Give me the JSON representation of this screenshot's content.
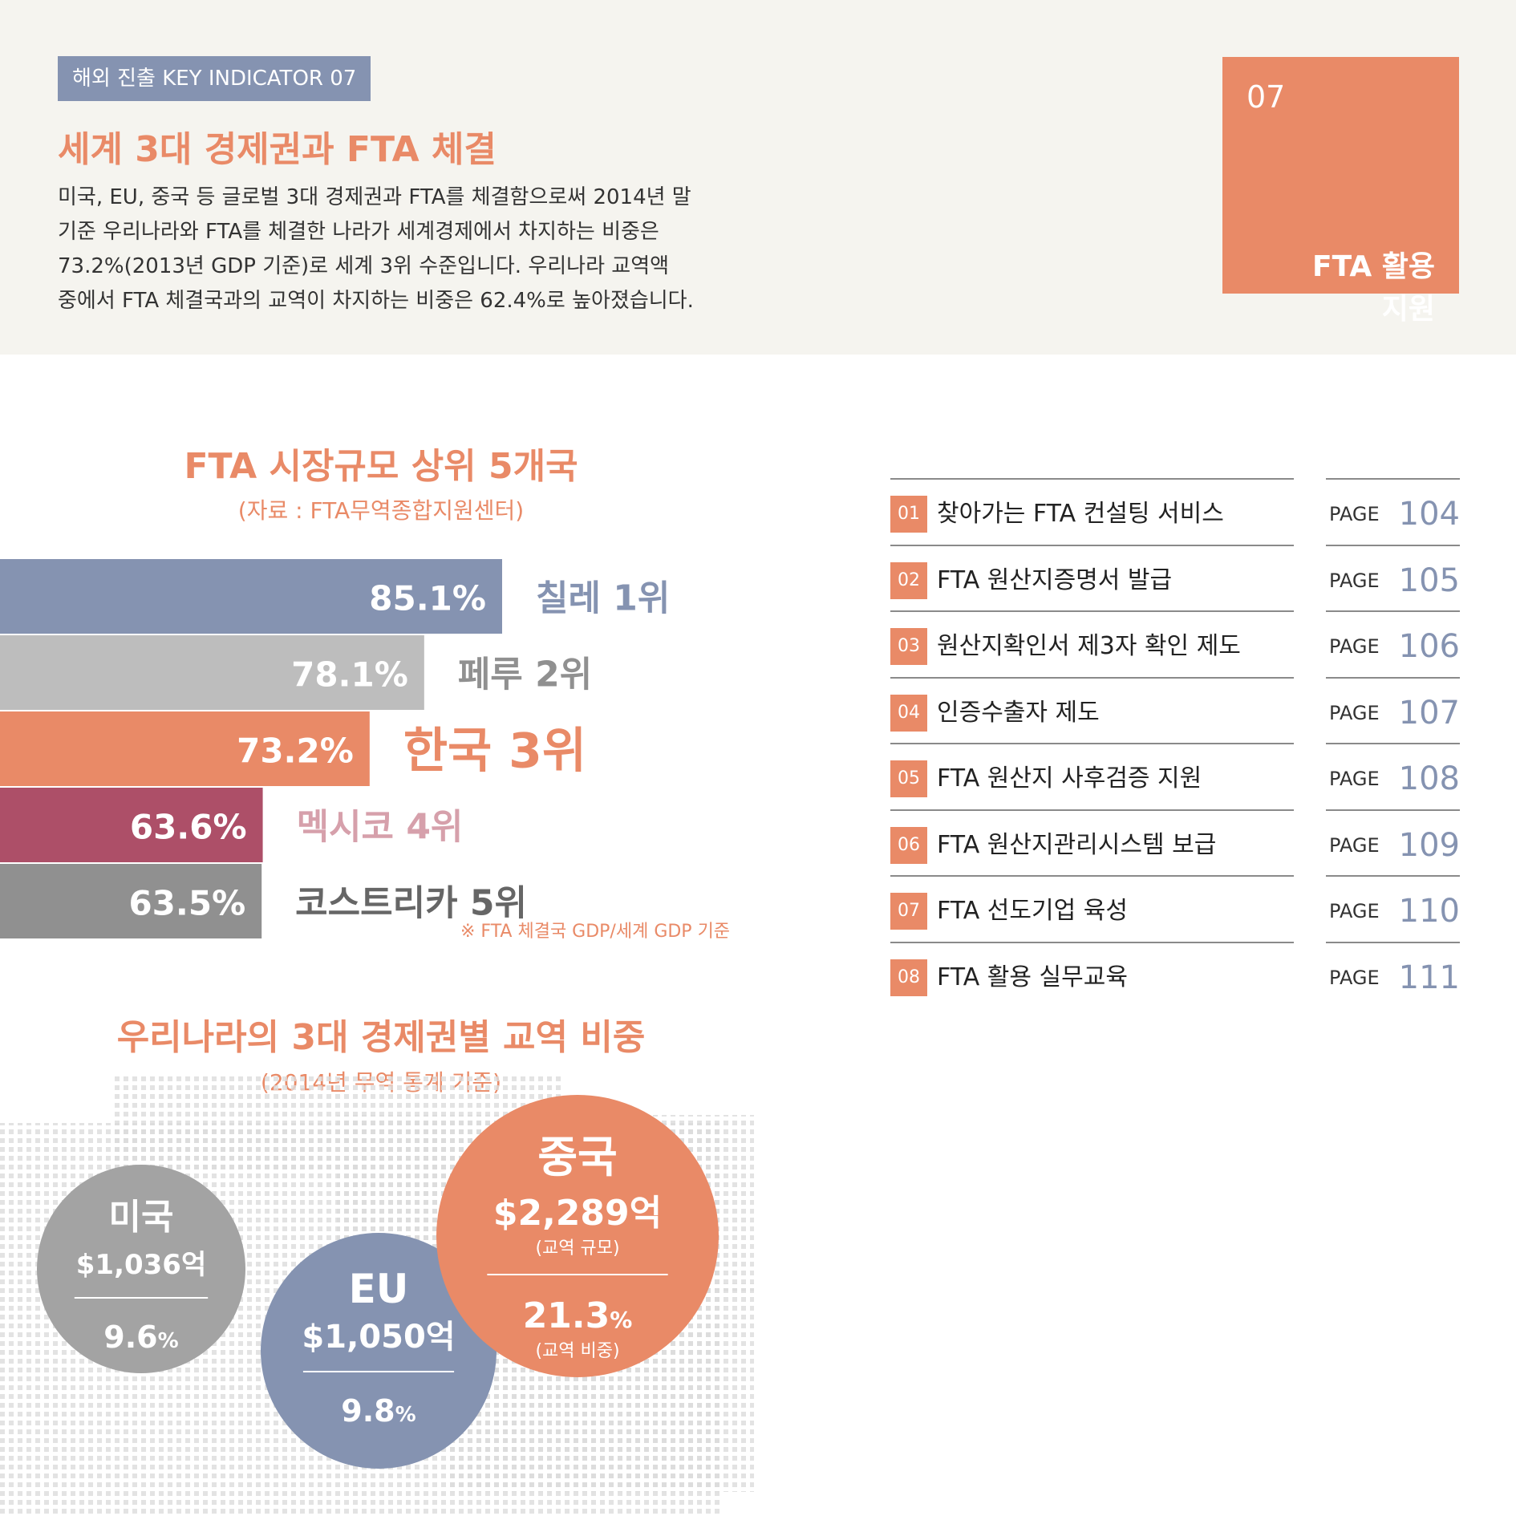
{
  "header": {
    "tag": "해외 진출 KEY INDICATOR 07",
    "title": "세계 3대 경제권과 FTA 체결",
    "description_lines": [
      "미국, EU, 중국 등 글로벌 3대 경제권과 FTA를 체결함으로써 2014년 말",
      "기준 우리나라와 FTA를 체결한 나라가 세계경제에서 차지하는 비중은",
      "73.2%(2013년 GDP 기준)로 세계 3위 수준입니다. 우리나라 교역액",
      "중에서 FTA 체결국과의 교역이 차지하는 비중은 62.4%로 높아졌습니다."
    ],
    "box": {
      "number": "07",
      "label_line1": "FTA 활용",
      "label_line2": "지원"
    }
  },
  "colors": {
    "accent": "#e98a67",
    "slate": "#8593b1",
    "light_gray": "#bdbdbd",
    "maroon": "#ad4f68",
    "gray": "#909090",
    "pink": "#d6a0ab",
    "circle_gray": "#a3a3a3"
  },
  "chart_data": [
    {
      "type": "bar",
      "orientation": "horizontal",
      "title": "FTA 시장규모 상위 5개국",
      "subtitle": "(자료 : FTA무역종합지원센터)",
      "note": "※ FTA 체결국 GDP/세계 GDP 기준",
      "categories": [
        "칠레 1위",
        "페루 2위",
        "한국 3위",
        "멕시코 4위",
        "코스트리카 5위"
      ],
      "values": [
        85.1,
        78.1,
        73.2,
        63.6,
        63.5
      ],
      "value_labels": [
        "85.1%",
        "78.1%",
        "73.2%",
        "63.6%",
        "63.5%"
      ],
      "bar_colors": [
        "#8593b1",
        "#bdbdbd",
        "#e98a67",
        "#ad4f68",
        "#909090"
      ],
      "label_colors": [
        "#8593b1",
        "#909090",
        "#e98a67",
        "#d6a0ab",
        "#666666"
      ]
    },
    {
      "type": "bubble",
      "title": "우리나라의 3대 경제권별 교역 비중",
      "subtitle": "(2014년 무역 통계 기준)",
      "items": [
        {
          "name": "미국",
          "amount": "$1,036억",
          "share": "9.6",
          "unit": "%",
          "value": 1036,
          "color": "#a3a3a3"
        },
        {
          "name": "EU",
          "amount": "$1,050억",
          "share": "9.8",
          "unit": "%",
          "value": 1050,
          "color": "#8593b1"
        },
        {
          "name": "중국",
          "amount": "$2,289억",
          "amount_caption": "(교역 규모)",
          "share": "21.3",
          "unit": "%",
          "share_caption": "(교역 비중)",
          "value": 2289,
          "color": "#e98a67"
        }
      ]
    }
  ],
  "toc": {
    "page_label": "PAGE",
    "items": [
      {
        "num": "01",
        "label": "찾아가는 FTA 컨설팅 서비스",
        "page": "104"
      },
      {
        "num": "02",
        "label": "FTA 원산지증명서 발급",
        "page": "105"
      },
      {
        "num": "03",
        "label": "원산지확인서 제3자 확인 제도",
        "page": "106"
      },
      {
        "num": "04",
        "label": "인증수출자 제도",
        "page": "107"
      },
      {
        "num": "05",
        "label": "FTA 원산지 사후검증 지원",
        "page": "108"
      },
      {
        "num": "06",
        "label": "FTA 원산지관리시스템 보급",
        "page": "109"
      },
      {
        "num": "07",
        "label": "FTA 선도기업 육성",
        "page": "110"
      },
      {
        "num": "08",
        "label": "FTA 활용 실무교육",
        "page": "111"
      }
    ]
  }
}
